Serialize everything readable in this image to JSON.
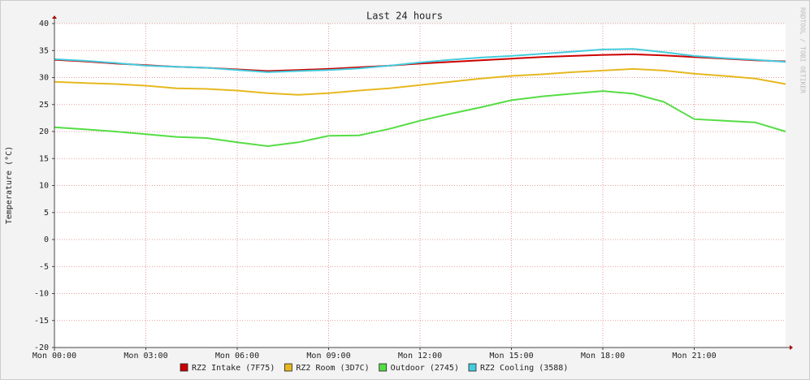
{
  "chart_data": {
    "type": "line",
    "title": "Last 24 hours",
    "y_label": "Temperature (°C)",
    "watermark": "RRDTOOL / TOBI OETIKER",
    "x": [
      0,
      1,
      2,
      3,
      4,
      5,
      6,
      7,
      8,
      9,
      10,
      11,
      12,
      13,
      14,
      15,
      16,
      17,
      18,
      19,
      20,
      21,
      22,
      23,
      24
    ],
    "xlim": [
      0,
      24
    ],
    "xticks": [
      {
        "value": 0,
        "label": "Mon 00:00"
      },
      {
        "value": 3,
        "label": "Mon 03:00"
      },
      {
        "value": 6,
        "label": "Mon 06:00"
      },
      {
        "value": 9,
        "label": "Mon 09:00"
      },
      {
        "value": 12,
        "label": "Mon 12:00"
      },
      {
        "value": 15,
        "label": "Mon 15:00"
      },
      {
        "value": 18,
        "label": "Mon 18:00"
      },
      {
        "value": 21,
        "label": "Mon 21:00"
      }
    ],
    "ylim": [
      -20,
      40
    ],
    "yticks": [
      -20,
      -15,
      -10,
      -5,
      0,
      5,
      10,
      15,
      20,
      25,
      30,
      35,
      40
    ],
    "grid": true,
    "legend": "bottom",
    "series": [
      {
        "name": "RZ2 Intake (7F75)",
        "color": "#cc0000",
        "values": [
          33.3,
          33.0,
          32.6,
          32.3,
          32.0,
          31.8,
          31.5,
          31.2,
          31.4,
          31.6,
          31.9,
          32.2,
          32.6,
          32.9,
          33.2,
          33.5,
          33.8,
          34.0,
          34.2,
          34.3,
          34.1,
          33.8,
          33.5,
          33.2,
          33.0
        ]
      },
      {
        "name": "RZ2 Room (3D7C)",
        "color": "#e6b820",
        "values": [
          29.2,
          29.0,
          28.8,
          28.5,
          28.0,
          27.9,
          27.6,
          27.1,
          26.8,
          27.1,
          27.6,
          28.0,
          28.6,
          29.2,
          29.8,
          30.3,
          30.6,
          31.0,
          31.3,
          31.6,
          31.3,
          30.7,
          30.3,
          29.8,
          28.8
        ]
      },
      {
        "name": "Outdoor (2745)",
        "color": "#55dd44",
        "values": [
          20.8,
          20.4,
          20.0,
          19.5,
          19.0,
          18.8,
          18.0,
          17.3,
          18.0,
          19.2,
          19.3,
          20.5,
          22.0,
          23.3,
          24.5,
          25.8,
          26.5,
          27.0,
          27.5,
          27.0,
          25.5,
          22.3,
          22.0,
          21.7,
          20.0
        ]
      },
      {
        "name": "RZ2 Cooling (3588)",
        "color": "#44ccdd",
        "values": [
          33.4,
          33.1,
          32.7,
          32.2,
          32.0,
          31.8,
          31.4,
          31.0,
          31.2,
          31.4,
          31.7,
          32.2,
          32.8,
          33.3,
          33.7,
          34.0,
          34.4,
          34.8,
          35.2,
          35.3,
          34.7,
          34.0,
          33.6,
          33.3,
          32.9
        ]
      }
    ]
  }
}
